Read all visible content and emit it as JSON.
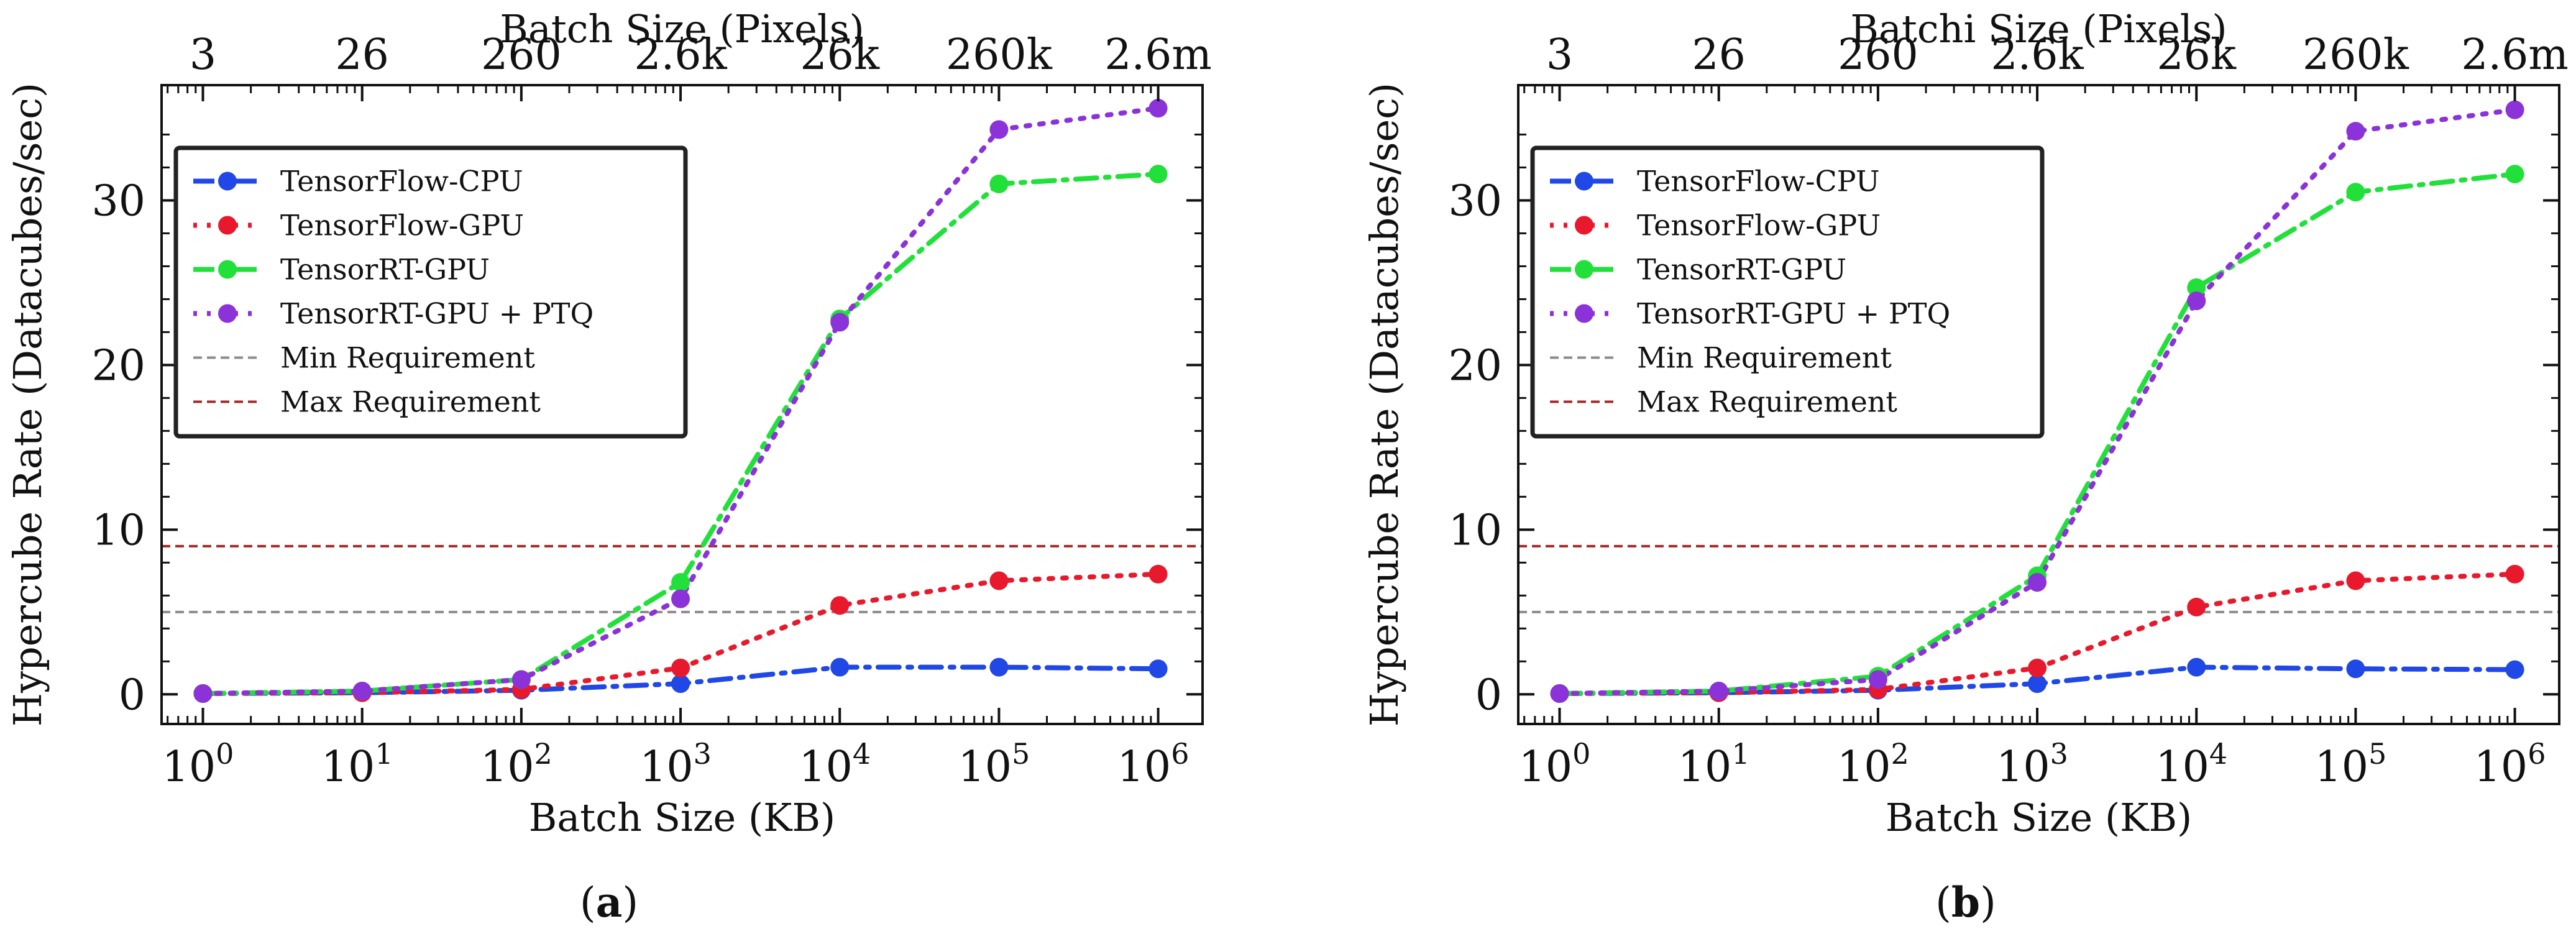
{
  "chart_data": [
    {
      "type": "line",
      "panel_label": "(a)",
      "panel_label_parts": {
        "open": "(",
        "letter": "a",
        "close": ")"
      },
      "xlabel": "Batch Size (KB)",
      "xlabel_top": "Batch Size (Pixels)",
      "ylabel": "Hypercube Rate (Datacubes/sec)",
      "x_scale": "log",
      "xlim": [
        0.55,
        1900000.0
      ],
      "ylim": [
        -1.8,
        37
      ],
      "x": [
        1,
        10,
        100,
        1000,
        10000,
        100000,
        1000000
      ],
      "x_tick_labels": [
        {
          "base": "10",
          "exp": "0"
        },
        {
          "base": "10",
          "exp": "1"
        },
        {
          "base": "10",
          "exp": "2"
        },
        {
          "base": "10",
          "exp": "3"
        },
        {
          "base": "10",
          "exp": "4"
        },
        {
          "base": "10",
          "exp": "5"
        },
        {
          "base": "10",
          "exp": "6"
        }
      ],
      "x_top_tick_labels": [
        "3",
        "26",
        "260",
        "2.6k",
        "26k",
        "260k",
        "2.6m"
      ],
      "y_ticks": [
        0,
        10,
        20,
        30
      ],
      "y_tick_labels": [
        "0",
        "10",
        "20",
        "30"
      ],
      "legend_position": "top-left",
      "series": [
        {
          "name": "TensorFlow-CPU",
          "color": "#1f48e6",
          "dash": "dashdot",
          "values": [
            0.05,
            0.1,
            0.25,
            0.65,
            1.65,
            1.65,
            1.55
          ]
        },
        {
          "name": "TensorFlow-GPU",
          "color": "#e8192c",
          "dash": "dotted",
          "values": [
            0.05,
            0.1,
            0.3,
            1.6,
            5.4,
            6.9,
            7.3
          ]
        },
        {
          "name": "TensorRT-GPU",
          "color": "#22e03a",
          "dash": "dashdot",
          "values": [
            0.05,
            0.2,
            0.9,
            6.8,
            22.8,
            31.0,
            31.6
          ]
        },
        {
          "name": "TensorRT-GPU + PTQ",
          "color": "#8b32d8",
          "dash": "dotted",
          "values": [
            0.05,
            0.2,
            0.9,
            5.8,
            22.6,
            34.3,
            35.6
          ]
        }
      ],
      "reference_lines": [
        {
          "name": "Min Requirement",
          "color": "#8c8c8c",
          "value": 5
        },
        {
          "name": "Max Requirement",
          "color": "#a52a2a",
          "value": 9
        }
      ]
    },
    {
      "type": "line",
      "panel_label": "(b)",
      "panel_label_parts": {
        "open": "(",
        "letter": "b",
        "close": ")"
      },
      "xlabel": "Batch Size (KB)",
      "xlabel_top": "Batchi Size (Pixels)",
      "ylabel": "Hypercube Rate (Datacubes/sec)",
      "x_scale": "log",
      "xlim": [
        0.55,
        1900000.0
      ],
      "ylim": [
        -1.8,
        37
      ],
      "x": [
        1,
        10,
        100,
        1000,
        10000,
        100000,
        1000000
      ],
      "x_tick_labels": [
        {
          "base": "10",
          "exp": "0"
        },
        {
          "base": "10",
          "exp": "1"
        },
        {
          "base": "10",
          "exp": "2"
        },
        {
          "base": "10",
          "exp": "3"
        },
        {
          "base": "10",
          "exp": "4"
        },
        {
          "base": "10",
          "exp": "5"
        },
        {
          "base": "10",
          "exp": "6"
        }
      ],
      "x_top_tick_labels": [
        "3",
        "26",
        "260",
        "2.6k",
        "26k",
        "260k",
        "2.6m"
      ],
      "y_ticks": [
        0,
        10,
        20,
        30
      ],
      "y_tick_labels": [
        "0",
        "10",
        "20",
        "30"
      ],
      "legend_position": "top-left",
      "series": [
        {
          "name": "TensorFlow-CPU",
          "color": "#1f48e6",
          "dash": "dashdot",
          "values": [
            0.05,
            0.1,
            0.25,
            0.65,
            1.65,
            1.55,
            1.5
          ]
        },
        {
          "name": "TensorFlow-GPU",
          "color": "#e8192c",
          "dash": "dotted",
          "values": [
            0.05,
            0.1,
            0.3,
            1.6,
            5.3,
            6.9,
            7.3
          ]
        },
        {
          "name": "TensorRT-GPU",
          "color": "#22e03a",
          "dash": "dashdot",
          "values": [
            0.05,
            0.2,
            1.1,
            7.2,
            24.7,
            30.5,
            31.6
          ]
        },
        {
          "name": "TensorRT-GPU + PTQ",
          "color": "#8b32d8",
          "dash": "dotted",
          "values": [
            0.05,
            0.2,
            0.9,
            6.8,
            23.9,
            34.2,
            35.5
          ]
        }
      ],
      "reference_lines": [
        {
          "name": "Min Requirement",
          "color": "#8c8c8c",
          "value": 5
        },
        {
          "name": "Max Requirement",
          "color": "#a52a2a",
          "value": 9
        }
      ]
    }
  ]
}
